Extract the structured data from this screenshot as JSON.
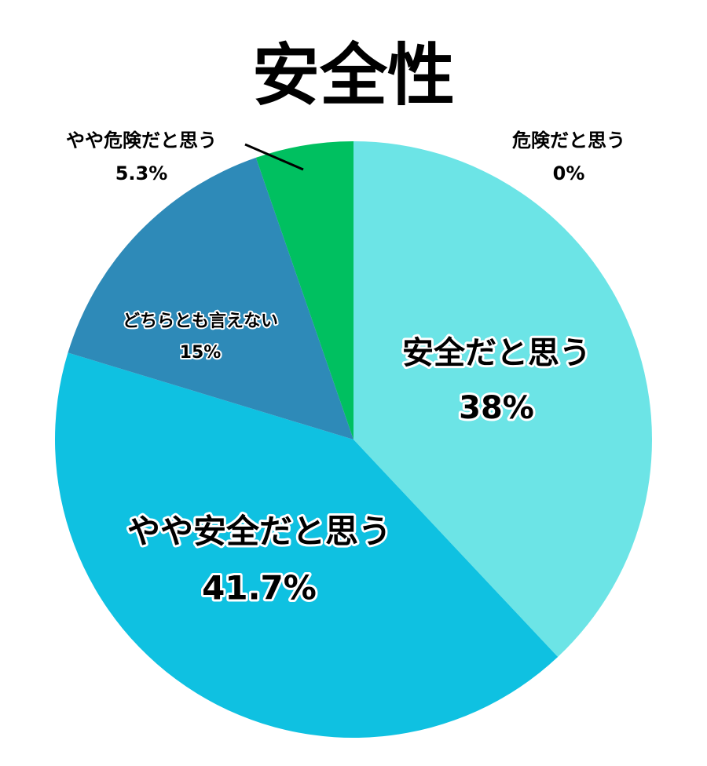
{
  "chart_data": {
    "type": "pie",
    "title": "安全性",
    "categories": [
      "安全だと思う",
      "やや安全だと思う",
      "どちらとも言えない",
      "やや危険だと思う",
      "危険だと思う"
    ],
    "values": [
      38,
      41.7,
      15,
      5.3,
      0
    ],
    "value_labels": [
      "38%",
      "41.7%",
      "15%",
      "5.3%",
      "0%"
    ],
    "colors": [
      "#6ce4e6",
      "#0fc1e1",
      "#2e8ab8",
      "#00c060",
      "#e05050"
    ]
  }
}
